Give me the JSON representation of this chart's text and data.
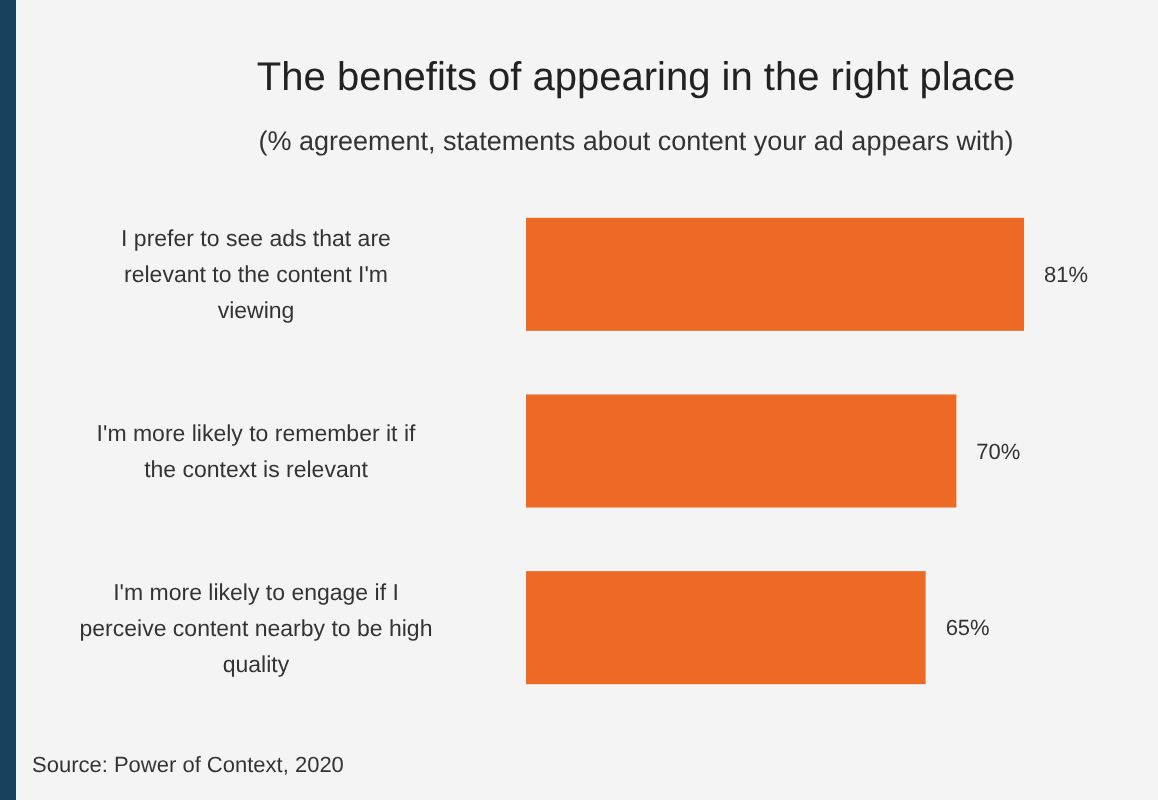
{
  "chart_data": {
    "type": "bar",
    "orientation": "horizontal",
    "title": "The benefits of appearing in the right place",
    "subtitle": "(% agreement, statements about content your ad appears with)",
    "categories": [
      "I prefer to see ads that are relevant to the content I'm viewing",
      "I'm more likely to remember it if the context is relevant",
      "I'm more likely to engage if I perceive content nearby to be high quality"
    ],
    "values": [
      81,
      70,
      65
    ],
    "value_labels": [
      "81%",
      "70%",
      "65%"
    ],
    "color": "#ec6a25",
    "tick_labels": "y",
    "annotations": [
      "Source: Power of Context, 2020"
    ]
  }
}
